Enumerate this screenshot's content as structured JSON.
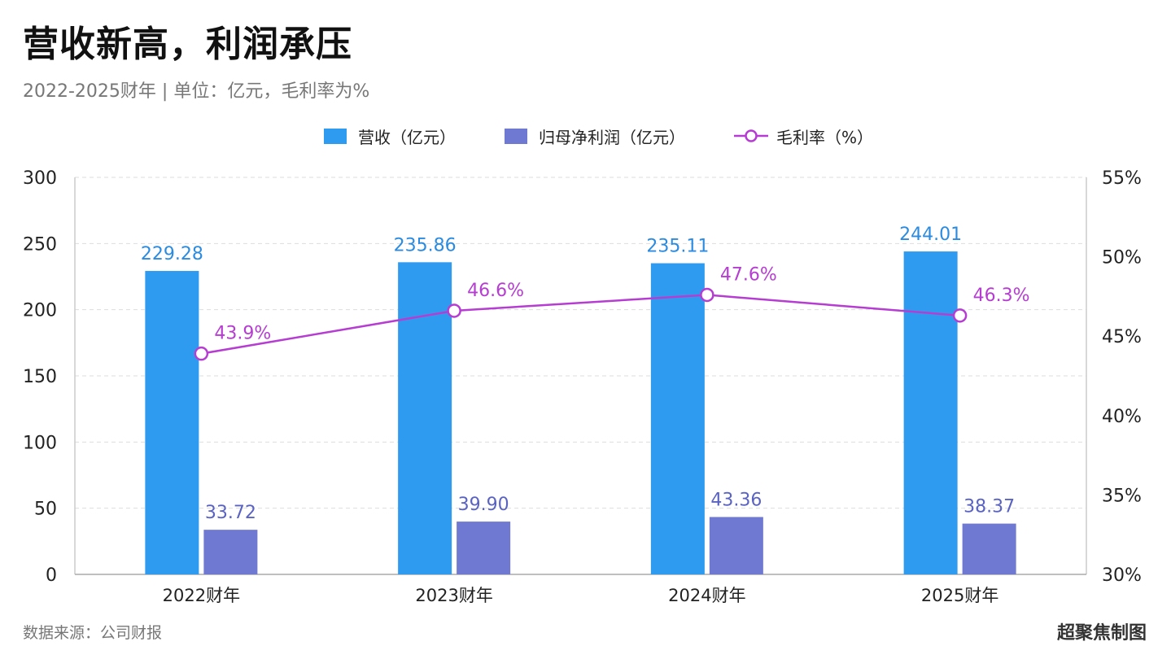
{
  "title": "营收新高，利润承压",
  "subtitle": "2022-2025财年 | 单位：亿元，毛利率为%",
  "source": "数据来源：公司财报",
  "credit": "超聚焦制图",
  "colors": {
    "revenue": "#2E9BF0",
    "profit": "#7079D1",
    "margin": "#B63DD1",
    "revenue_label": "#2B8BE0",
    "profit_label": "#5A63C2",
    "grid": "#DDDDDD",
    "axis_text": "#222222"
  },
  "chart_data": {
    "type": "bar",
    "categories": [
      "2022财年",
      "2023财年",
      "2024财年",
      "2025财年"
    ],
    "series": [
      {
        "name": "营收（亿元）",
        "kind": "bar",
        "axis": "left",
        "values": [
          229.28,
          235.86,
          235.11,
          244.01
        ],
        "labels": [
          "229.28",
          "235.86",
          "235.11",
          "244.01"
        ]
      },
      {
        "name": "归母净利润（亿元）",
        "kind": "bar",
        "axis": "left",
        "values": [
          33.72,
          39.9,
          43.36,
          38.37
        ],
        "labels": [
          "33.72",
          "39.90",
          "43.36",
          "38.37"
        ]
      },
      {
        "name": "毛利率（%）",
        "kind": "line",
        "axis": "right",
        "values": [
          43.9,
          46.6,
          47.6,
          46.3
        ],
        "labels": [
          "43.9%",
          "46.6%",
          "47.6%",
          "46.3%"
        ]
      }
    ],
    "ylim": [
      0,
      300
    ],
    "yticks": [
      0,
      50,
      100,
      150,
      200,
      250,
      300
    ],
    "ytick_labels": [
      "0",
      "50",
      "100",
      "150",
      "200",
      "250",
      "300"
    ],
    "y2lim": [
      30,
      55
    ],
    "y2ticks": [
      30,
      35,
      40,
      45,
      50,
      55
    ],
    "y2tick_labels": [
      "30%",
      "35%",
      "40%",
      "45%",
      "50%",
      "55%"
    ],
    "grid": true,
    "legend_position": "top-center"
  }
}
